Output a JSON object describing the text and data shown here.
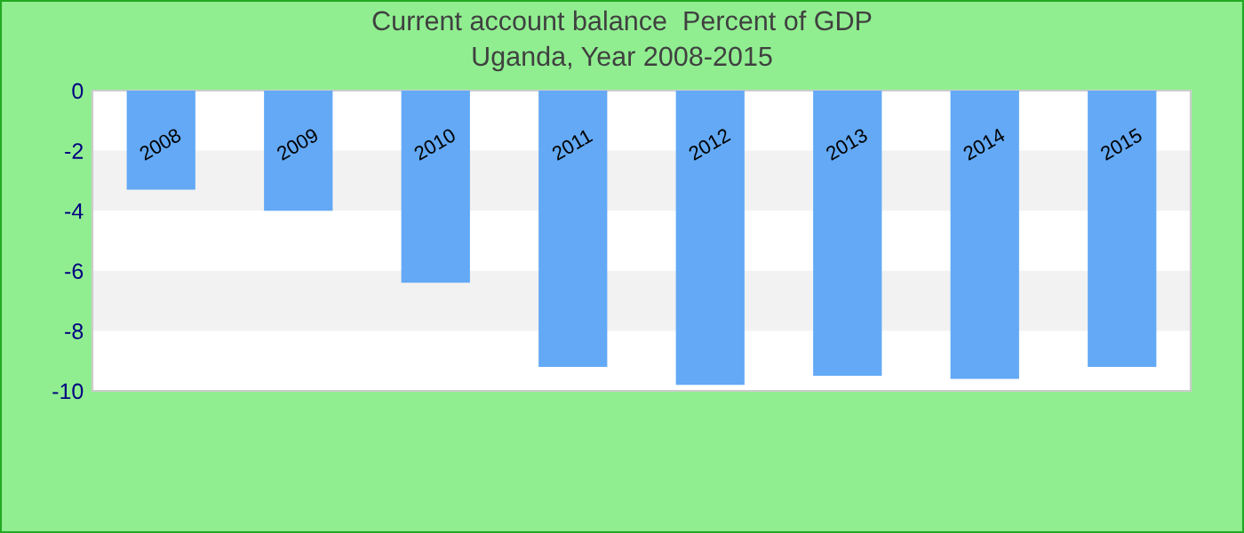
{
  "chart_data": {
    "type": "bar",
    "title": "Current account balance  Percent of GDP",
    "subtitle": "Uganda, Year 2008-2015",
    "categories": [
      "2008",
      "2009",
      "2010",
      "2011",
      "2012",
      "2013",
      "2014",
      "2015"
    ],
    "values": [
      -3.3,
      -4.0,
      -6.4,
      -9.2,
      -9.8,
      -9.5,
      -9.6,
      -9.2
    ],
    "color": "#63a9f5",
    "ylim": [
      -10,
      0
    ],
    "yticks": [
      -10,
      -8,
      -6,
      -4,
      -2,
      0
    ],
    "bands": [
      {
        "axis": "y",
        "from": -4,
        "to": -2,
        "color": "#f2f2f2"
      },
      {
        "axis": "y",
        "from": -8,
        "to": -6,
        "color": "#f2f2f2"
      }
    ],
    "grid": false
  }
}
